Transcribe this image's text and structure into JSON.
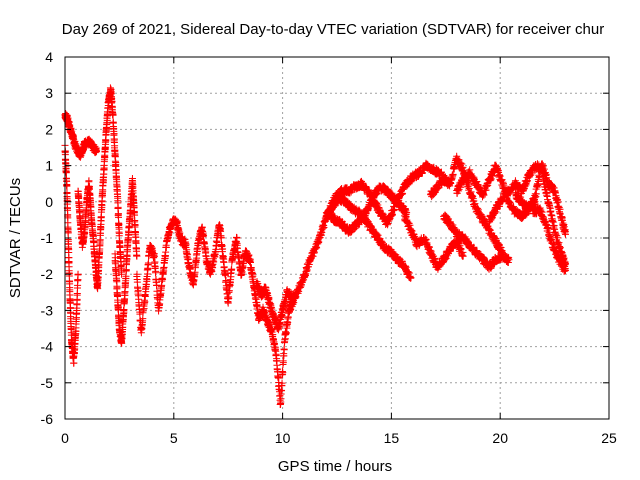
{
  "chart_data": {
    "type": "scatter",
    "title": "Day 269 of 2021, Sidereal Day-to-day VTEC variation (SDTVAR) for receiver chur",
    "xlabel": "GPS time / hours",
    "ylabel": "SDTVAR / TECUs",
    "xlim": [
      0,
      25
    ],
    "ylim": [
      -6,
      4
    ],
    "xticks": [
      0,
      5,
      10,
      15,
      20,
      25
    ],
    "yticks": [
      -6,
      -5,
      -4,
      -3,
      -2,
      -1,
      0,
      1,
      2,
      3,
      4
    ],
    "grid": true,
    "marker": "+",
    "series_color": "#ff0000",
    "series": [
      {
        "name": "SDTVAR",
        "tracks": [
          {
            "x": [
              0.0,
              0.1,
              0.2,
              0.35,
              0.5,
              0.7,
              0.9,
              1.1,
              1.3,
              1.45
            ],
            "y": [
              2.4,
              2.3,
              2.1,
              1.8,
              1.5,
              1.3,
              1.6,
              1.65,
              1.5,
              1.4
            ]
          },
          {
            "x": [
              0.0,
              0.08,
              0.15,
              0.22,
              0.3,
              0.4,
              0.5,
              0.6
            ],
            "y": [
              1.5,
              0.5,
              -1.0,
              -2.5,
              -3.8,
              -4.4,
              -3.5,
              -2.0
            ]
          },
          {
            "x": [
              0.6,
              0.7,
              0.8,
              0.9,
              1.0,
              1.1,
              1.2,
              1.3,
              1.4,
              1.5
            ],
            "y": [
              0.3,
              -0.5,
              -1.2,
              -0.8,
              0.0,
              0.5,
              -0.3,
              -1.0,
              -1.8,
              -2.4
            ]
          },
          {
            "x": [
              1.5,
              1.6,
              1.7,
              1.8,
              1.9,
              2.0,
              2.1,
              2.2,
              2.3,
              2.4,
              2.5,
              2.6
            ],
            "y": [
              -2.3,
              -1.2,
              0.0,
              1.0,
              2.0,
              2.8,
              3.1,
              2.4,
              1.3,
              0.3,
              -1.0,
              -2.0
            ]
          },
          {
            "x": [
              2.3,
              2.4,
              2.5,
              2.6,
              2.7,
              2.8,
              2.9,
              3.0,
              3.1,
              3.2,
              3.3
            ],
            "y": [
              -1.5,
              -2.5,
              -3.5,
              -3.9,
              -3.0,
              -2.0,
              -1.0,
              -0.3,
              0.6,
              -0.5,
              -1.5
            ]
          },
          {
            "x": [
              3.3,
              3.5,
              3.7,
              3.9,
              4.1,
              4.3,
              4.5,
              4.7,
              4.9,
              5.1,
              5.3,
              5.5
            ],
            "y": [
              -2.0,
              -3.6,
              -2.5,
              -1.2,
              -1.5,
              -3.0,
              -2.0,
              -1.0,
              -0.6,
              -0.5,
              -1.0,
              -1.2
            ]
          },
          {
            "x": [
              5.5,
              5.7,
              5.9,
              6.1,
              6.3,
              6.5,
              6.7,
              6.9,
              7.1,
              7.3,
              7.5,
              7.7,
              7.9
            ],
            "y": [
              -1.0,
              -1.8,
              -2.3,
              -1.2,
              -0.7,
              -1.6,
              -2.0,
              -1.4,
              -0.6,
              -1.7,
              -2.8,
              -1.5,
              -1.0
            ]
          },
          {
            "x": [
              7.9,
              8.1,
              8.3,
              8.5,
              8.7,
              8.9,
              9.1,
              9.3,
              9.5,
              9.7,
              9.9,
              10.1,
              10.3,
              10.5
            ],
            "y": [
              -1.2,
              -2.0,
              -1.4,
              -1.6,
              -2.4,
              -3.2,
              -3.0,
              -3.3,
              -3.6,
              -4.2,
              -5.6,
              -3.8,
              -3.0,
              -2.6
            ]
          },
          {
            "x": [
              8.8,
              9.0,
              9.2,
              9.4,
              9.6,
              9.8,
              10.0,
              10.2,
              10.4
            ],
            "y": [
              -2.2,
              -2.6,
              -2.4,
              -2.8,
              -3.2,
              -3.5,
              -3.0,
              -2.5,
              -2.6
            ]
          },
          {
            "x": [
              10.3,
              10.6,
              10.9,
              11.2,
              11.5,
              11.8,
              12.1,
              12.4,
              12.7,
              13.0,
              13.3,
              13.6,
              13.9,
              14.2
            ],
            "y": [
              -3.0,
              -2.6,
              -2.2,
              -1.7,
              -1.3,
              -0.8,
              -0.3,
              0.1,
              0.3,
              0.3,
              0.4,
              0.5,
              0.3,
              0.0
            ]
          },
          {
            "x": [
              12.0,
              12.3,
              12.6,
              12.9,
              13.2,
              13.5,
              13.8,
              14.1,
              14.4,
              14.7,
              15.0,
              15.3,
              15.6,
              15.9
            ],
            "y": [
              -0.4,
              -0.1,
              0.1,
              0.0,
              -0.2,
              -0.3,
              -0.5,
              -0.8,
              -1.0,
              -1.3,
              -1.4,
              -1.6,
              -1.8,
              -2.1
            ]
          },
          {
            "x": [
              12.1,
              12.4,
              12.7,
              13.0,
              13.3,
              13.6,
              13.9,
              14.2,
              14.5,
              14.8,
              15.1,
              15.4,
              15.7
            ],
            "y": [
              -0.3,
              -0.5,
              -0.6,
              -0.8,
              -0.7,
              -0.5,
              -0.2,
              0.2,
              0.4,
              0.3,
              0.1,
              -0.1,
              -0.3
            ]
          },
          {
            "x": [
              14.2,
              14.5,
              14.8,
              15.1,
              15.4,
              15.7,
              16.0,
              16.3,
              16.6,
              16.9,
              17.2,
              17.5
            ],
            "y": [
              0.0,
              -0.3,
              -0.6,
              -0.2,
              0.2,
              0.5,
              0.7,
              0.8,
              1.0,
              0.9,
              0.8,
              0.6
            ]
          },
          {
            "x": [
              15.6,
              15.9,
              16.2,
              16.5,
              16.8,
              17.1,
              17.4,
              17.7,
              18.0,
              18.3
            ],
            "y": [
              -0.4,
              -0.8,
              -1.2,
              -1.0,
              -1.4,
              -1.8,
              -1.6,
              -1.3,
              -1.1,
              -1.5
            ]
          },
          {
            "x": [
              16.8,
              17.1,
              17.4,
              17.7,
              18.0,
              18.3,
              18.6,
              18.9,
              19.2,
              19.5,
              19.8,
              20.1
            ],
            "y": [
              0.2,
              0.4,
              0.6,
              0.5,
              1.2,
              0.9,
              0.3,
              -0.2,
              -0.5,
              -0.8,
              -1.1,
              -1.4
            ]
          },
          {
            "x": [
              17.4,
              17.7,
              18.0,
              18.3,
              18.6,
              18.9,
              19.2,
              19.5,
              19.8,
              20.1,
              20.4
            ],
            "y": [
              -0.4,
              -0.6,
              -0.9,
              -1.0,
              -1.2,
              -1.4,
              -1.6,
              -1.8,
              -1.6,
              -1.5,
              -1.6
            ]
          },
          {
            "x": [
              18.0,
              18.3,
              18.6,
              18.9,
              19.2,
              19.5,
              19.8,
              20.1,
              20.4,
              20.7,
              21.0,
              21.3,
              21.6
            ],
            "y": [
              0.3,
              0.6,
              0.8,
              0.5,
              0.2,
              0.6,
              1.0,
              0.5,
              0.0,
              -0.3,
              -0.4,
              -0.2,
              0.0
            ]
          },
          {
            "x": [
              19.5,
              19.8,
              20.1,
              20.4,
              20.7,
              21.0,
              21.3,
              21.6,
              21.9,
              22.2,
              22.5,
              22.8,
              23.0
            ],
            "y": [
              -0.5,
              -0.2,
              0.1,
              0.3,
              0.5,
              0.3,
              0.7,
              1.0,
              0.9,
              0.0,
              -0.8,
              -1.4,
              -1.7
            ]
          },
          {
            "x": [
              20.7,
              21.0,
              21.3,
              21.6,
              21.9,
              22.2,
              22.5,
              22.8,
              23.0
            ],
            "y": [
              0.2,
              0.0,
              -0.2,
              0.1,
              1.1,
              0.5,
              0.3,
              -0.4,
              -0.9
            ]
          },
          {
            "x": [
              21.5,
              21.8,
              22.1,
              22.4,
              22.7,
              23.0
            ],
            "y": [
              -0.3,
              -0.2,
              -0.6,
              -1.2,
              -1.6,
              -1.9
            ]
          }
        ]
      }
    ]
  }
}
